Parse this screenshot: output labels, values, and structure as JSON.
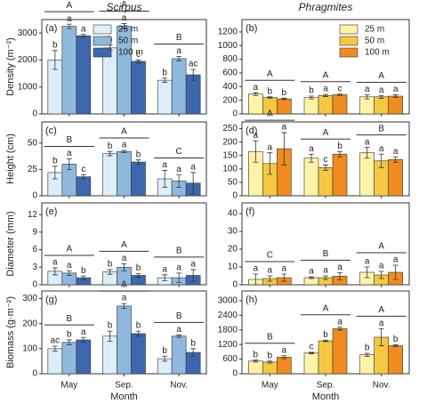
{
  "chart_data": [
    {
      "type": "bar",
      "panel_label": "(a)",
      "column_title": "Scirpus",
      "ylabel": "Density (m⁻²)",
      "legend": "upper center",
      "categories": [
        "May",
        "Sep.",
        "Nov."
      ],
      "ylim": [
        0,
        3500
      ],
      "yticks": [
        0,
        1000,
        2000,
        3000
      ],
      "series": [
        {
          "name": "25 m",
          "color": "#ddeef8",
          "values": [
            2000,
            2450,
            1250
          ],
          "errors": [
            350,
            100,
            80
          ],
          "letters": [
            "b",
            "b",
            "b"
          ]
        },
        {
          "name": "50 m",
          "color": "#8fb8dd",
          "values": [
            3250,
            3250,
            2050
          ],
          "errors": [
            80,
            100,
            80
          ],
          "letters": [
            "a",
            "a",
            "a"
          ]
        },
        {
          "name": "100 m",
          "color": "#3d68b0",
          "values": [
            2900,
            1950,
            1450
          ],
          "errors": [
            50,
            50,
            200
          ],
          "letters": [
            "a",
            "c",
            "ac"
          ]
        }
      ],
      "group_letters": [
        "A",
        "A",
        "B"
      ]
    },
    {
      "type": "bar",
      "panel_label": "(b)",
      "column_title": "Phragmites",
      "legend": "upper right",
      "categories": [
        "May",
        "Sep.",
        "Nov."
      ],
      "ylim": [
        0,
        1380
      ],
      "yticks": [
        0,
        200,
        400,
        600,
        800,
        1000,
        1200
      ],
      "series": [
        {
          "name": "25 m",
          "color": "#fdf3a8",
          "values": [
            290,
            240,
            250
          ],
          "errors": [
            20,
            20,
            30
          ],
          "letters": [
            "a",
            "b",
            "a"
          ]
        },
        {
          "name": "50 m",
          "color": "#f5c842",
          "values": [
            240,
            270,
            250
          ],
          "errors": [
            10,
            15,
            20
          ],
          "letters": [
            "b",
            "a",
            "a"
          ]
        },
        {
          "name": "100 m",
          "color": "#f08c1e",
          "values": [
            220,
            280,
            260
          ],
          "errors": [
            10,
            10,
            20
          ],
          "letters": [
            "b",
            "c",
            "a"
          ]
        }
      ],
      "group_letters": [
        "A",
        "A",
        "A"
      ]
    },
    {
      "type": "bar",
      "panel_label": "(c)",
      "ylabel": "Height (cm)",
      "categories": [
        "May",
        "Sep.",
        "Nov."
      ],
      "ylim": [
        0,
        70
      ],
      "yticks": [
        0,
        25,
        50
      ],
      "series": [
        {
          "name": "25 m",
          "color": "#ddeef8",
          "values": [
            22,
            40,
            16
          ],
          "errors": [
            6,
            2,
            8
          ],
          "letters": [
            "b",
            "b",
            "a"
          ]
        },
        {
          "name": "50 m",
          "color": "#8fb8dd",
          "values": [
            30,
            42,
            14
          ],
          "errors": [
            5,
            1,
            6
          ],
          "letters": [
            "a",
            "a",
            "a"
          ]
        },
        {
          "name": "100 m",
          "color": "#3d68b0",
          "values": [
            18,
            32,
            12
          ],
          "errors": [
            2,
            2,
            10
          ],
          "letters": [
            "c",
            "b",
            "a"
          ]
        }
      ],
      "group_letters": [
        "B",
        "A",
        "C"
      ]
    },
    {
      "type": "bar",
      "panel_label": "(d)",
      "categories": [
        "May",
        "Sep.",
        "Nov."
      ],
      "ylim": [
        0,
        275
      ],
      "yticks": [
        0,
        50,
        100,
        150,
        200,
        250
      ],
      "series": [
        {
          "name": "25 m",
          "color": "#fdf3a8",
          "values": [
            165,
            140,
            160
          ],
          "errors": [
            40,
            15,
            20
          ],
          "letters": [
            "a",
            "a",
            "a"
          ]
        },
        {
          "name": "50 m",
          "color": "#f5c842",
          "values": [
            120,
            105,
            130
          ],
          "errors": [
            40,
            10,
            25
          ],
          "letters": [
            "a",
            "c",
            "a"
          ]
        },
        {
          "name": "100 m",
          "color": "#f08c1e",
          "values": [
            175,
            155,
            135
          ],
          "errors": [
            60,
            10,
            10
          ],
          "letters": [
            "a",
            "b",
            "a"
          ]
        }
      ],
      "group_letters": [
        "A",
        "A",
        "B"
      ]
    },
    {
      "type": "bar",
      "panel_label": "(e)",
      "ylabel": "Diameter (mm)",
      "categories": [
        "May",
        "Sep.",
        "Nov."
      ],
      "ylim": [
        0,
        14
      ],
      "yticks": [
        0,
        3,
        6,
        9,
        12
      ],
      "series": [
        {
          "name": "25 m",
          "color": "#ddeef8",
          "values": [
            2.3,
            2.2,
            1.2
          ],
          "errors": [
            0.6,
            0.4,
            0.5
          ],
          "letters": [
            "a",
            "b",
            "a"
          ]
        },
        {
          "name": "50 m",
          "color": "#8fb8dd",
          "values": [
            2.0,
            3.0,
            1.2
          ],
          "errors": [
            0.4,
            0.6,
            0.8
          ],
          "letters": [
            "a",
            "a",
            "a"
          ]
        },
        {
          "name": "100 m",
          "color": "#3d68b0",
          "values": [
            1.2,
            1.6,
            1.6
          ],
          "errors": [
            0.3,
            0.3,
            1.0
          ],
          "letters": [
            "b",
            "b",
            "a"
          ]
        }
      ],
      "group_letters": [
        "A",
        "A",
        "B"
      ]
    },
    {
      "type": "bar",
      "panel_label": "(f)",
      "categories": [
        "May",
        "Sep.",
        "Nov."
      ],
      "ylim": [
        0,
        46
      ],
      "yticks": [
        0,
        10,
        20,
        30,
        40
      ],
      "series": [
        {
          "name": "25 m",
          "color": "#fdf3a8",
          "values": [
            3,
            4,
            7
          ],
          "errors": [
            3,
            0.5,
            3
          ],
          "letters": [
            "a",
            "a",
            "a"
          ]
        },
        {
          "name": "50 m",
          "color": "#f5c842",
          "values": [
            3.5,
            4,
            5.5
          ],
          "errors": [
            1.5,
            1,
            2
          ],
          "letters": [
            "a",
            "a",
            "a"
          ]
        },
        {
          "name": "100 m",
          "color": "#f08c1e",
          "values": [
            4,
            4.8,
            7
          ],
          "errors": [
            2,
            2,
            4
          ],
          "letters": [
            "a",
            "a",
            "a"
          ]
        }
      ],
      "group_letters": [
        "C",
        "B",
        "A"
      ]
    },
    {
      "type": "bar",
      "panel_label": "(g)",
      "ylabel": "Biomass (g·m⁻²)",
      "xlabel": "Month",
      "categories": [
        "May",
        "Sep.",
        "Nov."
      ],
      "ylim": [
        0,
        330
      ],
      "yticks": [
        0,
        100,
        200,
        300
      ],
      "series": [
        {
          "name": "25 m",
          "color": "#ddeef8",
          "values": [
            100,
            150,
            60
          ],
          "errors": [
            10,
            20,
            10
          ],
          "letters": [
            "ac",
            "b",
            "b"
          ]
        },
        {
          "name": "50 m",
          "color": "#8fb8dd",
          "values": [
            125,
            270,
            150
          ],
          "errors": [
            10,
            10,
            5
          ],
          "letters": [
            "b",
            "a",
            "a"
          ]
        },
        {
          "name": "100 m",
          "color": "#3d68b0",
          "values": [
            135,
            160,
            85
          ],
          "errors": [
            10,
            10,
            15
          ],
          "letters": [
            "a",
            "b",
            "b"
          ]
        }
      ],
      "group_letters": [
        "B",
        "A",
        "B"
      ]
    },
    {
      "type": "bar",
      "panel_label": "(h)",
      "xlabel": "Month",
      "categories": [
        "May",
        "Sep.",
        "Nov."
      ],
      "ylim": [
        0,
        3400
      ],
      "yticks": [
        0,
        600,
        1200,
        1800,
        2400,
        3000
      ],
      "series": [
        {
          "name": "25 m",
          "color": "#fdf3a8",
          "values": [
            520,
            850,
            780
          ],
          "errors": [
            40,
            30,
            60
          ],
          "letters": [
            "b",
            "c",
            "b"
          ]
        },
        {
          "name": "50 m",
          "color": "#f5c842",
          "values": [
            480,
            1350,
            1500
          ],
          "errors": [
            40,
            30,
            350
          ],
          "letters": [
            "b",
            "b",
            "a"
          ]
        },
        {
          "name": "100 m",
          "color": "#f08c1e",
          "values": [
            680,
            1850,
            1150
          ],
          "errors": [
            60,
            60,
            40
          ],
          "letters": [
            "a",
            "a",
            "b"
          ]
        }
      ],
      "group_letters": [
        "B",
        "A",
        "A"
      ]
    }
  ]
}
